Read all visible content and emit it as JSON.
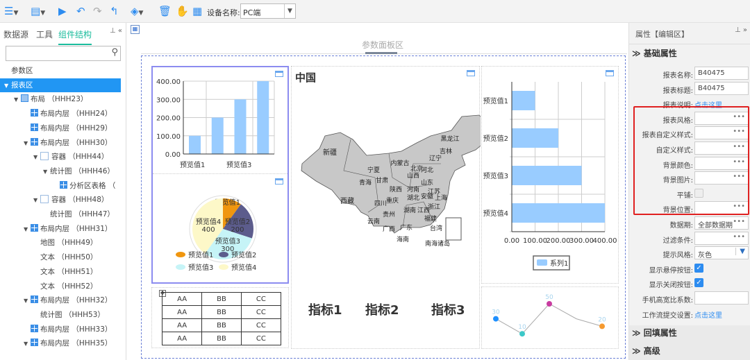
{
  "toolbar": {
    "device_label": "设备名称:",
    "device_value": "PC端",
    "icons": [
      "menu-icon",
      "save-icon",
      "run-icon",
      "undo-icon",
      "redo-icon",
      "return-icon",
      "paint-icon",
      "delete-icon",
      "hand-icon",
      "window-icon"
    ]
  },
  "left_panel": {
    "tabs": [
      "数据源",
      "工具",
      "组件结构"
    ],
    "active_tab": "组件结构",
    "search_placeholder": "",
    "tree": [
      {
        "label": "参数区",
        "depth": 0,
        "toggle": "",
        "icon": ""
      },
      {
        "label": "报表区",
        "depth": 0,
        "toggle": "▼",
        "icon": "",
        "selected": true
      },
      {
        "label": "布局 （HHH23）",
        "depth": 1,
        "toggle": "▼",
        "icon": "layout"
      },
      {
        "label": "布局内层 （HHH24）",
        "depth": 2,
        "toggle": "",
        "icon": "grid"
      },
      {
        "label": "布局内层 （HHH29）",
        "depth": 2,
        "toggle": "",
        "icon": "grid"
      },
      {
        "label": "布局内层 （HHH30）",
        "depth": 2,
        "toggle": "▼",
        "icon": "grid"
      },
      {
        "label": "容器 （HHH44）",
        "depth": 3,
        "toggle": "▼",
        "icon": "box"
      },
      {
        "label": "统计图 （HHH46）",
        "depth": 4,
        "toggle": "▼",
        "icon": ""
      },
      {
        "label": "分析区表格 （",
        "depth": 5,
        "toggle": "",
        "icon": "table"
      },
      {
        "label": "容器 （HHH48）",
        "depth": 3,
        "toggle": "▼",
        "icon": "box"
      },
      {
        "label": "统计图 （HHH47）",
        "depth": 4,
        "toggle": "",
        "icon": ""
      },
      {
        "label": "布局内层 （HHH31）",
        "depth": 2,
        "toggle": "▼",
        "icon": "grid"
      },
      {
        "label": "地图 （HHH49）",
        "depth": 3,
        "toggle": "",
        "icon": ""
      },
      {
        "label": "文本 （HHH50）",
        "depth": 3,
        "toggle": "",
        "icon": ""
      },
      {
        "label": "文本 （HHH51）",
        "depth": 3,
        "toggle": "",
        "icon": ""
      },
      {
        "label": "文本 （HHH52）",
        "depth": 3,
        "toggle": "",
        "icon": ""
      },
      {
        "label": "布局内层 （HHH32）",
        "depth": 2,
        "toggle": "▼",
        "icon": "grid"
      },
      {
        "label": "统计图 （HHH53）",
        "depth": 3,
        "toggle": "",
        "icon": ""
      },
      {
        "label": "布局内层 （HHH33）",
        "depth": 2,
        "toggle": "",
        "icon": "grid"
      },
      {
        "label": "布局内层 （HHH35）",
        "depth": 2,
        "toggle": "▼",
        "icon": "grid"
      }
    ]
  },
  "canvas": {
    "param_area_label": "参数面板区",
    "map": {
      "title": "中国",
      "regions": [
        "新疆",
        "西藏",
        "青海",
        "甘肃",
        "宁夏",
        "内蒙古",
        "黑龙江",
        "吉林",
        "辽宁",
        "北京",
        "河北",
        "山西",
        "山东",
        "陕西",
        "河南",
        "四川",
        "重庆",
        "湖北",
        "安徽",
        "江苏",
        "上海",
        "浙江",
        "湖南",
        "江西",
        "贵州",
        "云南",
        "广西",
        "广东",
        "福建",
        "台湾",
        "海南",
        "南海诸岛"
      ]
    },
    "kpis": [
      "指标1",
      "指标2",
      "指标3"
    ],
    "table": [
      [
        "AA",
        "BB",
        "CC"
      ],
      [
        "AA",
        "BB",
        "CC"
      ],
      [
        "AA",
        "BB",
        "CC"
      ],
      [
        "AA",
        "BB",
        "CC"
      ]
    ]
  },
  "chart_data": [
    {
      "type": "bar",
      "categories": [
        "预览值1",
        "预览值2",
        "预览值3",
        "预览值4"
      ],
      "values": [
        100,
        200,
        300,
        400
      ],
      "ylim": [
        0,
        400
      ],
      "yticks": [
        "0.00",
        "100.00",
        "200.00",
        "300.00",
        "400.00"
      ],
      "xtick_labels_shown": [
        "预览值1",
        "预览值3"
      ],
      "color": "#99ccff",
      "grid": true
    },
    {
      "type": "pie",
      "categories": [
        "预览值1",
        "预览值2",
        "预览值3",
        "预览值4"
      ],
      "values": [
        100,
        200,
        300,
        400
      ],
      "colors": [
        "#f0960f",
        "#5c5c8c",
        "#c6f4f7",
        "#fdf8c8"
      ],
      "data_labels": [
        "预览值1",
        "预览值2\n200",
        "预览值3\n300",
        "预览值4\n400"
      ],
      "legend": "bottom"
    },
    {
      "type": "bar",
      "orientation": "horizontal",
      "categories": [
        "预览值1",
        "预览值2",
        "预览值3",
        "预览值4"
      ],
      "series": [
        {
          "name": "系列1",
          "values": [
            100,
            200,
            300,
            400
          ]
        }
      ],
      "xlim": [
        0,
        400
      ],
      "xticks": [
        "0.00",
        "100.00",
        "200.00",
        "300.00",
        "400.00"
      ],
      "color": "#99ccff",
      "legend": "bottom",
      "grid": true
    },
    {
      "type": "line",
      "values": [
        30,
        10,
        50,
        30,
        20
      ],
      "data_labels": [
        "30",
        "10",
        "50",
        "",
        "20"
      ],
      "point_colors": [
        "#1e90ff",
        "#3cc8c8",
        "#c83ca0",
        "",
        "#f59a30"
      ],
      "label_color": "#a8d4ee"
    }
  ],
  "right_panel": {
    "title": "属性【编辑区】",
    "sections": {
      "basic": "基础属性",
      "backfill": "回填属性",
      "advanced": "高级"
    },
    "props": [
      {
        "label": "报表名称:",
        "type": "text",
        "value": "B40475"
      },
      {
        "label": "报表标题:",
        "type": "text",
        "value": "B40475"
      },
      {
        "label": "报表说明:",
        "type": "link",
        "value": "点击这里"
      },
      {
        "label": "报表风格:",
        "type": "dots",
        "value": ""
      },
      {
        "label": "报表自定义样式:",
        "type": "dots",
        "value": ""
      },
      {
        "label": "自定义样式:",
        "type": "dots",
        "value": ""
      },
      {
        "label": "背景颜色:",
        "type": "dots",
        "value": ""
      },
      {
        "label": "背景图片:",
        "type": "dots",
        "value": ""
      },
      {
        "label": "平铺:",
        "type": "checkbox",
        "checked": false
      },
      {
        "label": "背景位置:",
        "type": "dots",
        "value": ""
      },
      {
        "label": "数据期:",
        "type": "dots",
        "value": "全部数据期"
      },
      {
        "label": "过滤条件:",
        "type": "dots",
        "value": ""
      },
      {
        "label": "提示风格:",
        "type": "select",
        "value": "灰色"
      },
      {
        "label": "显示悬停按钮:",
        "type": "checkbox",
        "checked": true
      },
      {
        "label": "显示关闭按钮:",
        "type": "checkbox",
        "checked": true
      },
      {
        "label": "手机高宽比系数:",
        "type": "text",
        "value": ""
      },
      {
        "label": "工作流提交设置:",
        "type": "link",
        "value": "点击这里"
      }
    ],
    "highlight_color": "#e02020"
  },
  "colors": {
    "accent": "#2196f3",
    "tab_active": "#1abc9c",
    "link": "#2d8cf0"
  }
}
